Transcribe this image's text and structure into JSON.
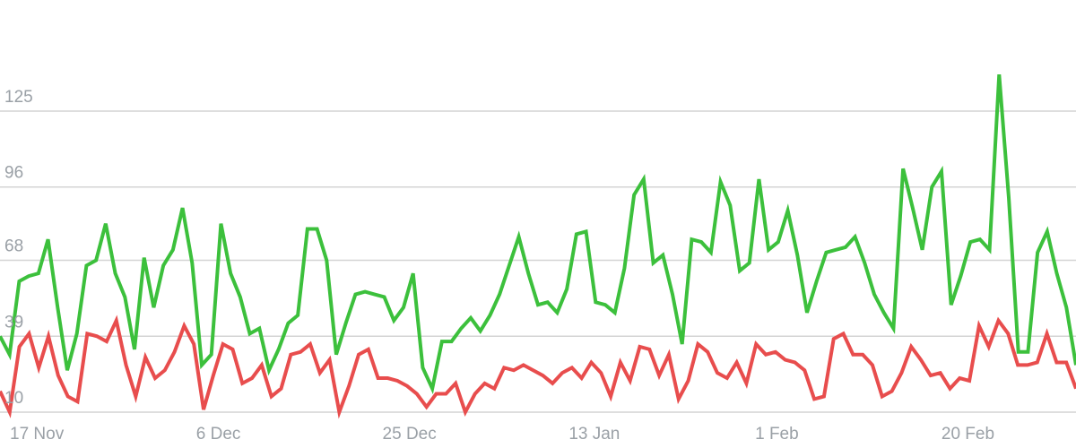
{
  "chart_data": {
    "type": "line",
    "title": "",
    "xlabel": "",
    "ylabel": "",
    "ylim": [
      10,
      125
    ],
    "grid": true,
    "legend": "none",
    "y_ticks": [
      10,
      39,
      68,
      96,
      125
    ],
    "y_tick_labels": [
      "10",
      "39",
      "68",
      "96",
      "125"
    ],
    "x_tick_labels": [
      {
        "date": "2023-11-17",
        "label": "17 Nov"
      },
      {
        "date": "2023-12-06",
        "label": "6 Dec"
      },
      {
        "date": "2023-12-25",
        "label": "25 Dec"
      },
      {
        "date": "2024-01-13",
        "label": "13 Jan"
      },
      {
        "date": "2024-02-01",
        "label": "1 Feb"
      },
      {
        "date": "2024-02-20",
        "label": "20 Feb"
      }
    ],
    "x_start": "2023-11-17",
    "x_end": "2024-03-05",
    "series": [
      {
        "color": "#3cc03c",
        "values": [
          39,
          32,
          60,
          62,
          63,
          76,
          50,
          26,
          40,
          66,
          68,
          82,
          63,
          54,
          34,
          69,
          50,
          66,
          72,
          88,
          67,
          28,
          32,
          82,
          63,
          54,
          40,
          42,
          26,
          34,
          44,
          47,
          80,
          80,
          68,
          32,
          44,
          55,
          56,
          55,
          54,
          45,
          50,
          63,
          27,
          19,
          37,
          37,
          42,
          46,
          41,
          47,
          55,
          66,
          77,
          63,
          51,
          52,
          48,
          57,
          78,
          79,
          52,
          51,
          48,
          65,
          93,
          99,
          67,
          70,
          55,
          36,
          76,
          75,
          71,
          98,
          89,
          64,
          67,
          99,
          72,
          75,
          87,
          70,
          48,
          60,
          71,
          72,
          73,
          77,
          67,
          55,
          48,
          42,
          103,
          88,
          72,
          96,
          102,
          51,
          62,
          75,
          76,
          72,
          139,
          92,
          33,
          33,
          71,
          79,
          63,
          50,
          28
        ]
      },
      {
        "color": "#e84d4d",
        "values": [
          18,
          10,
          35,
          40,
          27,
          39,
          24,
          16,
          14,
          40,
          39,
          37,
          45,
          28,
          16,
          31,
          23,
          26,
          33,
          43,
          36,
          11,
          24,
          36,
          34,
          21,
          23,
          28,
          16,
          19,
          32,
          33,
          36,
          25,
          30,
          10,
          20,
          32,
          34,
          23,
          23,
          22,
          20,
          17,
          12,
          17,
          17,
          21,
          10,
          17,
          21,
          19,
          27,
          26,
          28,
          26,
          24,
          21,
          25,
          27,
          23,
          29,
          25,
          16,
          29,
          22,
          35,
          34,
          24,
          32,
          15,
          22,
          36,
          33,
          25,
          23,
          29,
          21,
          36,
          32,
          33,
          30,
          29,
          26,
          15,
          16,
          38,
          40,
          32,
          32,
          28,
          16,
          18,
          25,
          35,
          30,
          24,
          25,
          19,
          23,
          22,
          43,
          35,
          45,
          40,
          28,
          28,
          29,
          40,
          29,
          29,
          19
        ]
      }
    ]
  }
}
